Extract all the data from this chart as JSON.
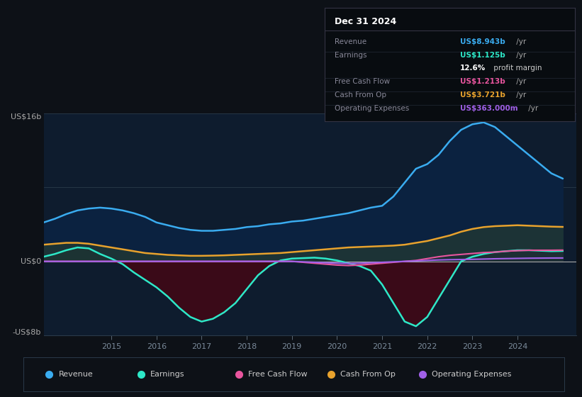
{
  "background_color": "#0d1117",
  "plot_bg_color": "#0e1c2e",
  "ylim": [
    -8,
    16
  ],
  "xlim": [
    2013.5,
    2025.3
  ],
  "xticks": [
    2015,
    2016,
    2017,
    2018,
    2019,
    2020,
    2021,
    2022,
    2023,
    2024
  ],
  "ylabel_top": "US$16b",
  "ylabel_zero": "US$0",
  "ylabel_bottom": "-US$8b",
  "series": {
    "revenue": {
      "color": "#3aacf0",
      "fill_color": "#0a2040",
      "x": [
        2013.5,
        2013.75,
        2014.0,
        2014.25,
        2014.5,
        2014.75,
        2015.0,
        2015.25,
        2015.5,
        2015.75,
        2016.0,
        2016.25,
        2016.5,
        2016.75,
        2017.0,
        2017.25,
        2017.5,
        2017.75,
        2018.0,
        2018.25,
        2018.5,
        2018.75,
        2019.0,
        2019.25,
        2019.5,
        2019.75,
        2020.0,
        2020.25,
        2020.5,
        2020.75,
        2021.0,
        2021.25,
        2021.5,
        2021.75,
        2022.0,
        2022.25,
        2022.5,
        2022.75,
        2023.0,
        2023.25,
        2023.5,
        2023.75,
        2024.0,
        2024.25,
        2024.5,
        2024.75,
        2025.0
      ],
      "y": [
        4.2,
        4.6,
        5.1,
        5.5,
        5.7,
        5.8,
        5.7,
        5.5,
        5.2,
        4.8,
        4.2,
        3.9,
        3.6,
        3.4,
        3.3,
        3.3,
        3.4,
        3.5,
        3.7,
        3.8,
        4.0,
        4.1,
        4.3,
        4.4,
        4.6,
        4.8,
        5.0,
        5.2,
        5.5,
        5.8,
        6.0,
        7.0,
        8.5,
        10.0,
        10.5,
        11.5,
        13.0,
        14.2,
        14.8,
        15.0,
        14.5,
        13.5,
        12.5,
        11.5,
        10.5,
        9.5,
        8.943
      ]
    },
    "earnings": {
      "color": "#2de8c8",
      "x": [
        2013.5,
        2013.75,
        2014.0,
        2014.25,
        2014.5,
        2014.75,
        2015.0,
        2015.25,
        2015.5,
        2015.75,
        2016.0,
        2016.25,
        2016.5,
        2016.75,
        2017.0,
        2017.25,
        2017.5,
        2017.75,
        2018.0,
        2018.25,
        2018.5,
        2018.75,
        2019.0,
        2019.25,
        2019.5,
        2019.75,
        2020.0,
        2020.25,
        2020.5,
        2020.75,
        2021.0,
        2021.25,
        2021.5,
        2021.75,
        2022.0,
        2022.25,
        2022.5,
        2022.75,
        2023.0,
        2023.25,
        2023.5,
        2023.75,
        2024.0,
        2024.25,
        2024.5,
        2024.75,
        2025.0
      ],
      "y": [
        0.5,
        0.8,
        1.2,
        1.5,
        1.4,
        0.8,
        0.3,
        -0.3,
        -1.2,
        -2.0,
        -2.8,
        -3.8,
        -5.0,
        -6.0,
        -6.5,
        -6.2,
        -5.5,
        -4.5,
        -3.0,
        -1.5,
        -0.5,
        0.1,
        0.3,
        0.35,
        0.4,
        0.3,
        0.1,
        -0.2,
        -0.5,
        -1.0,
        -2.5,
        -4.5,
        -6.5,
        -7.0,
        -6.0,
        -4.0,
        -2.0,
        0.0,
        0.5,
        0.8,
        1.0,
        1.1,
        1.2,
        1.2,
        1.15,
        1.1,
        1.125
      ]
    },
    "cash_from_op": {
      "color": "#e8a22d",
      "x": [
        2013.5,
        2013.75,
        2014.0,
        2014.25,
        2014.5,
        2014.75,
        2015.0,
        2015.25,
        2015.5,
        2015.75,
        2016.0,
        2016.25,
        2016.5,
        2016.75,
        2017.0,
        2017.25,
        2017.5,
        2017.75,
        2018.0,
        2018.25,
        2018.5,
        2018.75,
        2019.0,
        2019.25,
        2019.5,
        2019.75,
        2020.0,
        2020.25,
        2020.5,
        2020.75,
        2021.0,
        2021.25,
        2021.5,
        2021.75,
        2022.0,
        2022.25,
        2022.5,
        2022.75,
        2023.0,
        2023.25,
        2023.5,
        2023.75,
        2024.0,
        2024.25,
        2024.5,
        2024.75,
        2025.0
      ],
      "y": [
        1.8,
        1.9,
        2.0,
        2.0,
        1.9,
        1.7,
        1.5,
        1.3,
        1.1,
        0.9,
        0.8,
        0.7,
        0.65,
        0.6,
        0.6,
        0.62,
        0.65,
        0.7,
        0.75,
        0.8,
        0.85,
        0.9,
        1.0,
        1.1,
        1.2,
        1.3,
        1.4,
        1.5,
        1.55,
        1.6,
        1.65,
        1.7,
        1.8,
        2.0,
        2.2,
        2.5,
        2.8,
        3.2,
        3.5,
        3.7,
        3.8,
        3.85,
        3.9,
        3.85,
        3.8,
        3.75,
        3.721
      ]
    },
    "free_cash_flow": {
      "color": "#e8559e",
      "x": [
        2013.5,
        2013.75,
        2014.0,
        2014.25,
        2014.5,
        2014.75,
        2015.0,
        2015.25,
        2015.5,
        2015.75,
        2016.0,
        2016.25,
        2016.5,
        2016.75,
        2017.0,
        2017.25,
        2017.5,
        2017.75,
        2018.0,
        2018.25,
        2018.5,
        2018.75,
        2019.0,
        2019.25,
        2019.5,
        2019.75,
        2020.0,
        2020.25,
        2020.5,
        2020.75,
        2021.0,
        2021.25,
        2021.5,
        2021.75,
        2022.0,
        2022.25,
        2022.5,
        2022.75,
        2023.0,
        2023.25,
        2023.5,
        2023.75,
        2024.0,
        2024.25,
        2024.5,
        2024.75,
        2025.0
      ],
      "y": [
        0.0,
        0.0,
        0.0,
        0.0,
        0.0,
        0.0,
        0.0,
        0.0,
        0.0,
        0.0,
        0.0,
        0.0,
        0.0,
        0.0,
        0.0,
        0.0,
        0.0,
        0.0,
        0.0,
        0.0,
        0.0,
        0.0,
        0.0,
        -0.1,
        -0.2,
        -0.3,
        -0.4,
        -0.45,
        -0.4,
        -0.3,
        -0.2,
        -0.1,
        0.0,
        0.1,
        0.3,
        0.5,
        0.65,
        0.75,
        0.85,
        0.95,
        1.0,
        1.1,
        1.15,
        1.2,
        1.2,
        1.2,
        1.213
      ]
    },
    "operating_expenses": {
      "color": "#a060e8",
      "x": [
        2013.5,
        2013.75,
        2014.0,
        2014.25,
        2014.5,
        2014.75,
        2015.0,
        2015.25,
        2015.5,
        2015.75,
        2016.0,
        2016.25,
        2016.5,
        2016.75,
        2017.0,
        2017.25,
        2017.5,
        2017.75,
        2018.0,
        2018.25,
        2018.5,
        2018.75,
        2019.0,
        2019.25,
        2019.5,
        2019.75,
        2020.0,
        2020.25,
        2020.5,
        2020.75,
        2021.0,
        2021.25,
        2021.5,
        2021.75,
        2022.0,
        2022.25,
        2022.5,
        2022.75,
        2023.0,
        2023.25,
        2023.5,
        2023.75,
        2024.0,
        2024.25,
        2024.5,
        2024.75,
        2025.0
      ],
      "y": [
        0.0,
        0.0,
        0.0,
        0.0,
        0.0,
        0.0,
        0.0,
        0.0,
        0.0,
        0.0,
        0.0,
        0.0,
        0.0,
        0.0,
        0.0,
        0.0,
        0.0,
        0.0,
        0.0,
        0.0,
        0.0,
        0.0,
        0.0,
        -0.05,
        -0.1,
        -0.15,
        -0.2,
        -0.22,
        -0.2,
        -0.15,
        -0.1,
        -0.05,
        0.0,
        0.05,
        0.1,
        0.15,
        0.18,
        0.2,
        0.22,
        0.25,
        0.28,
        0.3,
        0.32,
        0.34,
        0.35,
        0.36,
        0.363
      ]
    }
  },
  "info_box": {
    "date": "Dec 31 2024",
    "rows": [
      {
        "label": "Revenue",
        "value": "US$8.943b",
        "suffix": " /yr",
        "value_color": "#3aacf0"
      },
      {
        "label": "Earnings",
        "value": "US$1.125b",
        "suffix": " /yr",
        "value_color": "#2de8c8"
      },
      {
        "label": "",
        "value": "12.6%",
        "suffix": " profit margin",
        "value_color": "#ffffff"
      },
      {
        "label": "Free Cash Flow",
        "value": "US$1.213b",
        "suffix": " /yr",
        "value_color": "#e8559e"
      },
      {
        "label": "Cash From Op",
        "value": "US$3.721b",
        "suffix": " /yr",
        "value_color": "#e8a22d"
      },
      {
        "label": "Operating Expenses",
        "value": "US$363.000m",
        "suffix": " /yr",
        "value_color": "#a060e8"
      }
    ]
  },
  "legend": [
    {
      "label": "Revenue",
      "color": "#3aacf0"
    },
    {
      "label": "Earnings",
      "color": "#2de8c8"
    },
    {
      "label": "Free Cash Flow",
      "color": "#e8559e"
    },
    {
      "label": "Cash From Op",
      "color": "#e8a22d"
    },
    {
      "label": "Operating Expenses",
      "color": "#a060e8"
    }
  ]
}
